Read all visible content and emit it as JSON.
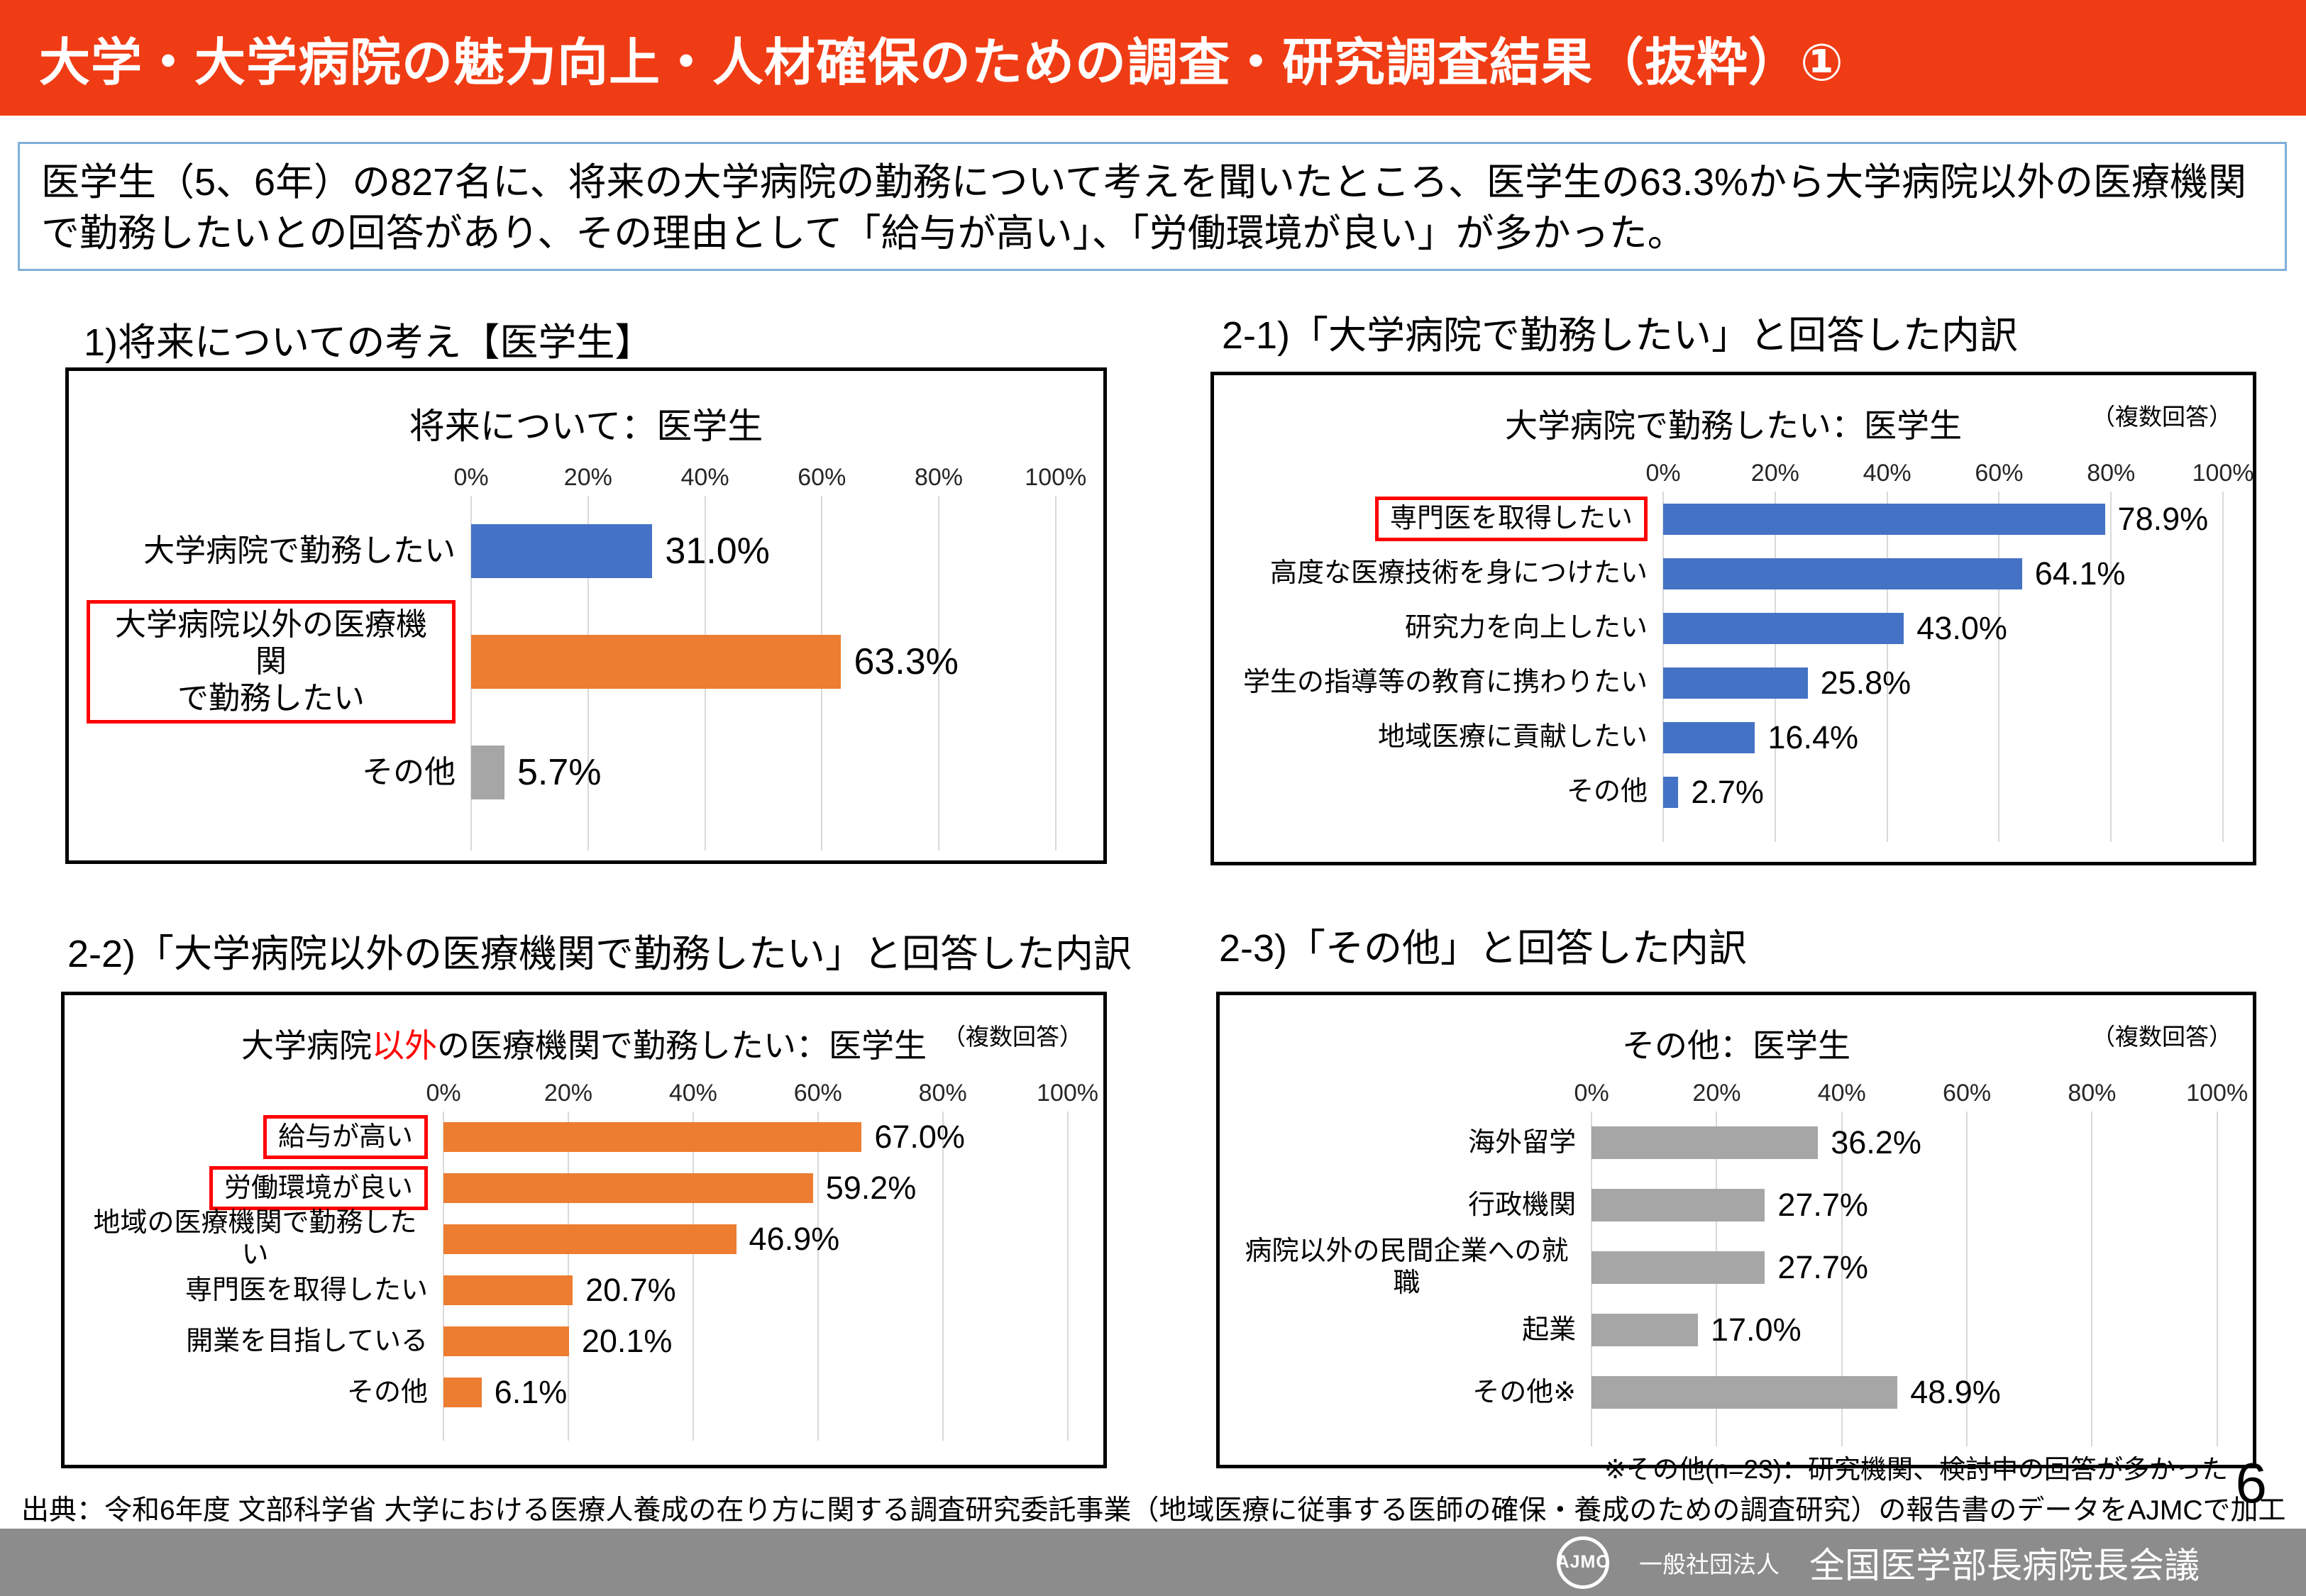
{
  "page": {
    "title": "大学・大学病院の魅力向上・人材確保のための調査・研究調査結果（抜粋）①",
    "summary": "医学生（5、6年）の827名に、将来の大学病院の勤務について考えを聞いたところ、医学生の63.3%から大学病院以外の医療機関で勤務したいとの回答があり、その理由として「給与が高い」、「労働環境が良い」が多かった。",
    "page_number": "6",
    "source": "出典：令和6年度 文部科学省 大学における医療人養成の在り方に関する調査研究委託事業（地域医療に従事する医師の確保・養成のための調査研究）の報告書のデータをAJMCで加工",
    "footer": {
      "logo_text": "AJMC",
      "org_prefix": "一般社団法人",
      "org_name": "全国医学部長病院長会議"
    }
  },
  "sections": [
    {
      "heading": "1)将来についての考え【医学生】"
    },
    {
      "heading": "2-1)「大学病院で勤務したい」と回答した内訳"
    },
    {
      "heading": "2-2)「大学病院以外の医療機関で勤務したい」と回答した内訳"
    },
    {
      "heading": "2-3)「その他」と回答した内訳"
    }
  ],
  "colors": {
    "banner_red": "#F03C14",
    "bar_blue": "#4472C4",
    "bar_orange": "#ED7D31",
    "bar_gray": "#A6A6A6",
    "highlight_box_red": "#FF0000",
    "summary_border_blue": "#7FAFD9",
    "gridline_gray": "#D9D9D9",
    "footer_bar_gray": "#8C8C8C"
  },
  "chart_data": [
    {
      "type": "bar",
      "orientation": "horizontal",
      "title_parts": [
        {
          "text": "将来について：医学生",
          "color": "#000000"
        }
      ],
      "note": "",
      "axis_ticks": [
        "0%",
        "20%",
        "40%",
        "60%",
        "80%",
        "100%"
      ],
      "xlim": [
        0,
        100
      ],
      "grid": true,
      "categories": [
        "大学病院で勤務したい",
        "大学病院以外の医療機関\nで勤務したい",
        "その他"
      ],
      "values": [
        31.0,
        63.3,
        5.7
      ],
      "value_labels": [
        "31.0%",
        "63.3%",
        "5.7%"
      ],
      "bar_colors": [
        "#4472C4",
        "#ED7D31",
        "#A6A6A6"
      ],
      "boxed": [
        false,
        true,
        false
      ],
      "footnote": ""
    },
    {
      "type": "bar",
      "orientation": "horizontal",
      "title_parts": [
        {
          "text": "大学病院で勤務したい：医学生",
          "color": "#000000"
        }
      ],
      "note": "（複数回答）",
      "axis_ticks": [
        "0%",
        "20%",
        "40%",
        "60%",
        "80%",
        "100%"
      ],
      "xlim": [
        0,
        100
      ],
      "grid": true,
      "categories": [
        "専門医を取得したい",
        "高度な医療技術を身につけたい",
        "研究力を向上したい",
        "学生の指導等の教育に携わりたい",
        "地域医療に貢献したい",
        "その他"
      ],
      "values": [
        78.9,
        64.1,
        43.0,
        25.8,
        16.4,
        2.7
      ],
      "value_labels": [
        "78.9%",
        "64.1%",
        "43.0%",
        "25.8%",
        "16.4%",
        "2.7%"
      ],
      "bar_color": "#4472C4",
      "boxed": [
        true,
        false,
        false,
        false,
        false,
        false
      ],
      "footnote": ""
    },
    {
      "type": "bar",
      "orientation": "horizontal",
      "title_parts": [
        {
          "text": "大学病院",
          "color": "#000000"
        },
        {
          "text": "以外",
          "color": "#FF0000"
        },
        {
          "text": "の医療機関で勤務したい：医学生",
          "color": "#000000"
        }
      ],
      "note": "（複数回答）",
      "axis_ticks": [
        "0%",
        "20%",
        "40%",
        "60%",
        "80%",
        "100%"
      ],
      "xlim": [
        0,
        100
      ],
      "grid": true,
      "categories": [
        "給与が高い",
        "労働環境が良い",
        "地域の医療機関で勤務したい",
        "専門医を取得したい",
        "開業を目指している",
        "その他"
      ],
      "values": [
        67.0,
        59.2,
        46.9,
        20.7,
        20.1,
        6.1
      ],
      "value_labels": [
        "67.0%",
        "59.2%",
        "46.9%",
        "20.7%",
        "20.1%",
        "6.1%"
      ],
      "bar_color": "#ED7D31",
      "boxed": [
        true,
        true,
        false,
        false,
        false,
        false
      ],
      "footnote": ""
    },
    {
      "type": "bar",
      "orientation": "horizontal",
      "title_parts": [
        {
          "text": "その他：医学生",
          "color": "#000000"
        }
      ],
      "note": "（複数回答）",
      "axis_ticks": [
        "0%",
        "20%",
        "40%",
        "60%",
        "80%",
        "100%"
      ],
      "xlim": [
        0,
        100
      ],
      "grid": true,
      "categories": [
        "海外留学",
        "行政機関",
        "病院以外の民間企業への就職",
        "起業",
        "その他※"
      ],
      "values": [
        36.2,
        27.7,
        27.7,
        17.0,
        48.9
      ],
      "value_labels": [
        "36.2%",
        "27.7%",
        "27.7%",
        "17.0%",
        "48.9%"
      ],
      "bar_color": "#A6A6A6",
      "boxed": [
        false,
        false,
        false,
        false,
        false
      ],
      "footnote": "※その他(n=23)：研究機関、検討中の回答が多かった"
    }
  ]
}
